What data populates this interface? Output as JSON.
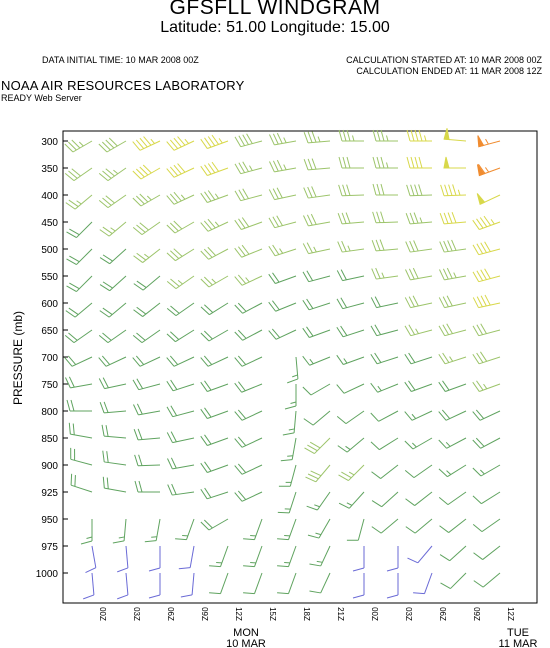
{
  "header": {
    "title": "GFSFLL WINDGRAM",
    "subtitle": "Latitude: 51.00 Longitude:  15.00",
    "initial_time": "DATA INITIAL TIME: 10 MAR 2008 00Z",
    "calc_started": "CALCULATION STARTED AT: 10 MAR 2008 00Z",
    "calc_ended": "CALCULATION ENDED AT: 11 MAR 2008 12Z",
    "organization": "NOAA AIR RESOURCES LABORATORY",
    "server": "READY Web Server"
  },
  "chart_data": {
    "type": "windbarb",
    "ylabel": "PRESSURE (mb)",
    "ylim": [
      1000,
      300
    ],
    "pressure_levels": [
      300,
      350,
      400,
      450,
      500,
      550,
      600,
      650,
      700,
      750,
      800,
      850,
      900,
      925,
      950,
      975,
      1000
    ],
    "times": [
      "00Z",
      "03Z",
      "06Z",
      "09Z",
      "12Z",
      "15Z",
      "18Z",
      "21Z",
      "00Z",
      "03Z",
      "06Z",
      "09Z",
      "12Z"
    ],
    "date_labels": [
      {
        "day": "MON",
        "date": "10 MAR",
        "at": 4
      },
      {
        "day": "TUE",
        "date": "11 MAR",
        "at": 12
      }
    ],
    "colors": {
      "blue": "#6a6ad6",
      "green": "#5fa35f",
      "lightgreen": "#9cc46a",
      "yellow": "#d8d84a",
      "orange": "#f08c30"
    },
    "color_thresholds_kt": [
      10,
      25,
      40,
      55
    ],
    "series": [
      {
        "dir": [
          240,
          240,
          245,
          245,
          250,
          255,
          260,
          265,
          270,
          270,
          270,
          275,
          255
        ],
        "spd": [
          35,
          38,
          45,
          45,
          45,
          38,
          35,
          35,
          35,
          35,
          45,
          50,
          55
        ]
      },
      {
        "dir": [
          235,
          235,
          240,
          245,
          250,
          255,
          260,
          265,
          270,
          270,
          270,
          270,
          250
        ],
        "spd": [
          30,
          35,
          40,
          40,
          40,
          35,
          33,
          32,
          32,
          35,
          40,
          48,
          65
        ]
      },
      {
        "dir": [
          230,
          235,
          240,
          245,
          250,
          255,
          258,
          262,
          268,
          270,
          268,
          268,
          245
        ],
        "spd": [
          25,
          30,
          35,
          35,
          35,
          32,
          30,
          30,
          30,
          32,
          38,
          45,
          50
        ]
      },
      {
        "dir": [
          225,
          230,
          235,
          240,
          245,
          250,
          255,
          260,
          265,
          268,
          265,
          265,
          250
        ],
        "spd": [
          22,
          25,
          30,
          32,
          33,
          30,
          28,
          28,
          28,
          30,
          35,
          42,
          45
        ]
      },
      {
        "dir": [
          225,
          228,
          232,
          238,
          242,
          248,
          252,
          258,
          262,
          265,
          262,
          262,
          255
        ],
        "spd": [
          20,
          22,
          25,
          28,
          30,
          28,
          25,
          25,
          25,
          28,
          32,
          38,
          42
        ]
      },
      {
        "dir": [
          225,
          228,
          230,
          235,
          240,
          245,
          250,
          255,
          258,
          262,
          260,
          260,
          255
        ],
        "spd": [
          18,
          20,
          22,
          25,
          25,
          25,
          22,
          22,
          22,
          25,
          30,
          35,
          40
        ]
      },
      {
        "dir": [
          230,
          230,
          232,
          235,
          238,
          242,
          248,
          252,
          255,
          258,
          258,
          258,
          258
        ],
        "spd": [
          18,
          18,
          20,
          22,
          22,
          22,
          20,
          20,
          20,
          22,
          28,
          32,
          40
        ]
      },
      {
        "dir": [
          235,
          235,
          235,
          238,
          240,
          242,
          245,
          250,
          252,
          255,
          255,
          255,
          255
        ],
        "spd": [
          18,
          18,
          18,
          20,
          20,
          20,
          18,
          18,
          18,
          20,
          25,
          28,
          32
        ]
      },
      {
        "dir": [
          245,
          245,
          245,
          245,
          245,
          245,
          175,
          248,
          250,
          252,
          252,
          252,
          252
        ],
        "spd": [
          18,
          18,
          18,
          18,
          18,
          18,
          15,
          15,
          15,
          18,
          22,
          25,
          28
        ]
      },
      {
        "dir": [
          260,
          258,
          255,
          252,
          250,
          248,
          180,
          240,
          245,
          248,
          250,
          250,
          250
        ],
        "spd": [
          18,
          18,
          18,
          18,
          18,
          18,
          15,
          12,
          12,
          15,
          18,
          22,
          25
        ]
      },
      {
        "dir": [
          270,
          265,
          260,
          255,
          250,
          245,
          185,
          230,
          235,
          242,
          245,
          245,
          245
        ],
        "spd": [
          20,
          20,
          20,
          18,
          18,
          18,
          15,
          12,
          12,
          12,
          15,
          18,
          22
        ]
      },
      {
        "dir": [
          280,
          275,
          265,
          258,
          250,
          245,
          190,
          225,
          230,
          238,
          240,
          242,
          242
        ],
        "spd": [
          20,
          20,
          20,
          18,
          18,
          18,
          15,
          28,
          15,
          12,
          15,
          15,
          18
        ]
      },
      {
        "dir": [
          285,
          278,
          268,
          260,
          250,
          245,
          195,
          220,
          225,
          232,
          235,
          238,
          240
        ],
        "spd": [
          22,
          22,
          20,
          18,
          18,
          18,
          15,
          28,
          25,
          12,
          12,
          15,
          15
        ]
      },
      {
        "dir": [
          288,
          280,
          270,
          262,
          252,
          245,
          198,
          215,
          222,
          228,
          232,
          235,
          238
        ],
        "spd": [
          22,
          20,
          20,
          18,
          18,
          18,
          15,
          15,
          15,
          10,
          12,
          12,
          12
        ]
      },
      {
        "dir": [
          180,
          185,
          190,
          200,
          240,
          200,
          200,
          210,
          195,
          230,
          230,
          232,
          235
        ],
        "spd": [
          15,
          15,
          15,
          15,
          18,
          15,
          15,
          15,
          12,
          10,
          10,
          10,
          12
        ]
      },
      {
        "dir": [
          170,
          175,
          180,
          190,
          200,
          200,
          200,
          205,
          180,
          180,
          220,
          228,
          232
        ],
        "spd": [
          8,
          8,
          8,
          8,
          15,
          15,
          15,
          15,
          8,
          8,
          8,
          10,
          10
        ]
      },
      {
        "dir": [
          175,
          175,
          180,
          185,
          200,
          200,
          200,
          205,
          180,
          180,
          200,
          225,
          230
        ],
        "spd": [
          8,
          8,
          8,
          8,
          12,
          12,
          12,
          12,
          8,
          8,
          8,
          10,
          10
        ]
      }
    ]
  }
}
